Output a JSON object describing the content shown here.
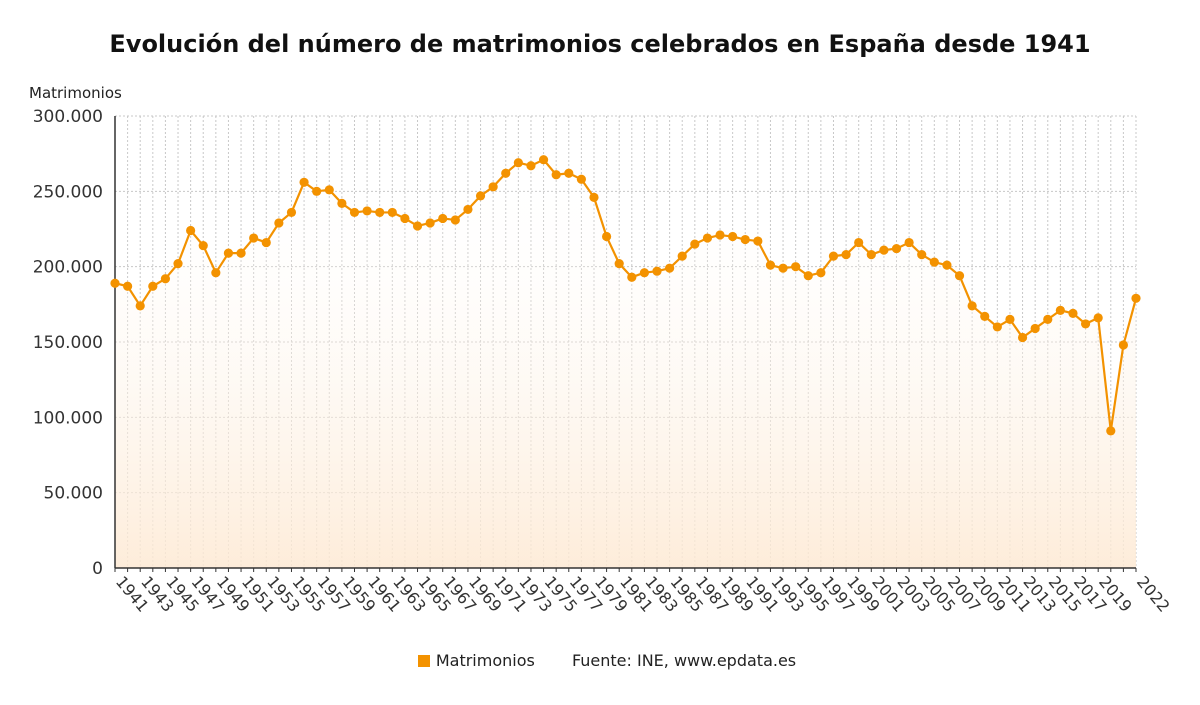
{
  "chart_data": {
    "type": "line",
    "title": "Evolución del número de matrimonios celebrados en España desde 1941",
    "ylabel": "Matrimonios",
    "xlabel": "",
    "ylim": [
      0,
      300000
    ],
    "yticks": [
      0,
      50000,
      100000,
      150000,
      200000,
      250000,
      300000
    ],
    "ytick_labels": [
      "0",
      "50.000",
      "100.000",
      "150.000",
      "200.000",
      "250.000",
      "300.000"
    ],
    "xtick_labels": [
      "1941",
      "1943",
      "1945",
      "1947",
      "1949",
      "1951",
      "1953",
      "1955",
      "1957",
      "1959",
      "1961",
      "1963",
      "1965",
      "1967",
      "1969",
      "1971",
      "1973",
      "1975",
      "1977",
      "1979",
      "1981",
      "1983",
      "1985",
      "1987",
      "1989",
      "1991",
      "1993",
      "1995",
      "1997",
      "1999",
      "2001",
      "2003",
      "2005",
      "2007",
      "2009",
      "2011",
      "2013",
      "2015",
      "2017",
      "2019",
      "2022"
    ],
    "grid": true,
    "legend_position": "bottom",
    "x": [
      1941,
      1942,
      1943,
      1944,
      1945,
      1946,
      1947,
      1948,
      1949,
      1950,
      1951,
      1952,
      1953,
      1954,
      1955,
      1956,
      1957,
      1958,
      1959,
      1960,
      1961,
      1962,
      1963,
      1964,
      1965,
      1966,
      1967,
      1968,
      1969,
      1970,
      1971,
      1972,
      1973,
      1974,
      1975,
      1976,
      1977,
      1978,
      1979,
      1980,
      1981,
      1982,
      1983,
      1984,
      1985,
      1986,
      1987,
      1988,
      1989,
      1990,
      1991,
      1992,
      1993,
      1994,
      1995,
      1996,
      1997,
      1998,
      1999,
      2000,
      2001,
      2002,
      2003,
      2004,
      2005,
      2006,
      2007,
      2008,
      2009,
      2010,
      2011,
      2012,
      2013,
      2014,
      2015,
      2016,
      2017,
      2018,
      2019,
      2020,
      2021,
      2022
    ],
    "series": [
      {
        "name": "Matrimonios",
        "color": "#f39200",
        "values": [
          189000,
          187000,
          174000,
          187000,
          192000,
          202000,
          224000,
          214000,
          196000,
          209000,
          209000,
          219000,
          216000,
          229000,
          236000,
          256000,
          250000,
          251000,
          242000,
          236000,
          237000,
          236000,
          236000,
          232000,
          227000,
          229000,
          232000,
          231000,
          238000,
          247000,
          253000,
          262000,
          269000,
          267000,
          271000,
          261000,
          262000,
          258000,
          246000,
          220000,
          202000,
          193000,
          196000,
          197000,
          199000,
          207000,
          215000,
          219000,
          221000,
          220000,
          218000,
          217000,
          201000,
          199000,
          200000,
          194000,
          196000,
          207000,
          208000,
          216000,
          208000,
          211000,
          212000,
          216000,
          208000,
          203000,
          201000,
          194000,
          174000,
          167000,
          160000,
          165000,
          153000,
          159000,
          165000,
          171000,
          169000,
          162000,
          166000,
          91000,
          148000,
          179000
        ]
      }
    ]
  },
  "legend": {
    "label": "Matrimonios",
    "source": "Fuente: INE, www.epdata.es"
  }
}
